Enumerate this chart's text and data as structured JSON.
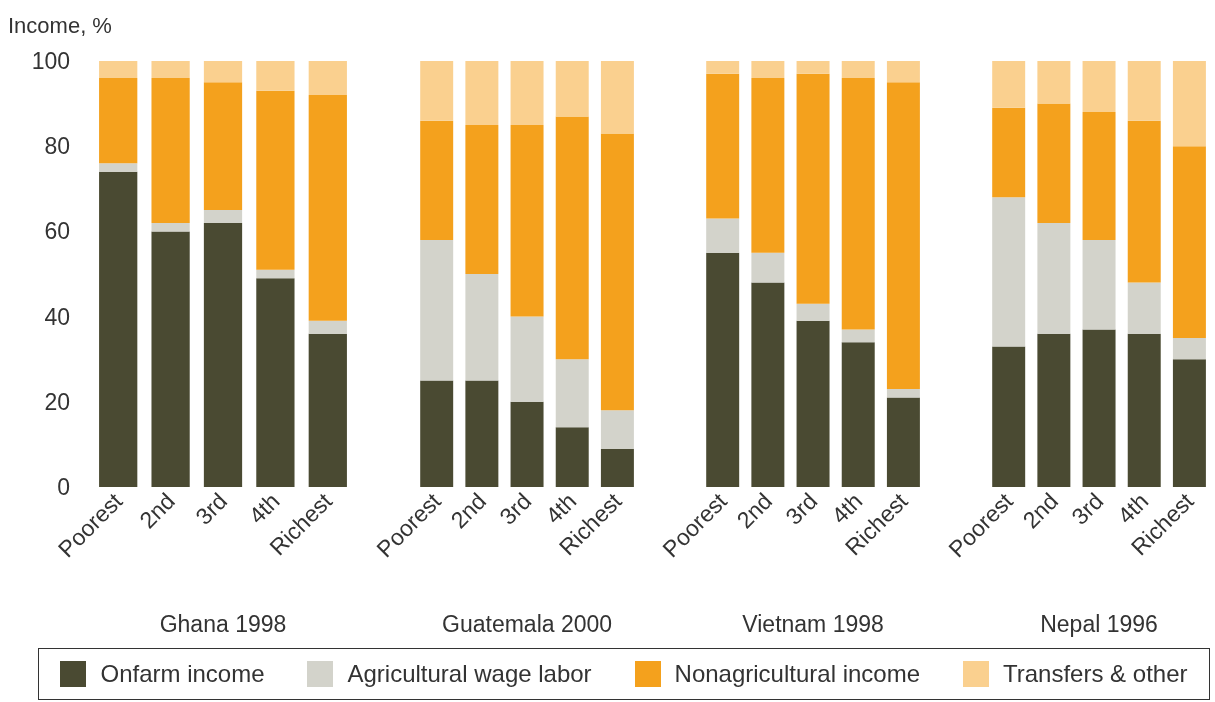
{
  "chart_data": [
    {
      "type": "bar",
      "stacked": true,
      "ylabel": "Income, %",
      "xlabel": "Ghana 1998",
      "categories": [
        "Poorest",
        "2nd",
        "3rd",
        "4th",
        "Richest"
      ],
      "ylim": [
        0,
        100
      ],
      "yticks": [
        0,
        20,
        40,
        60,
        80,
        100
      ],
      "legend": "bottom",
      "series": [
        {
          "name": "Onfarm income",
          "color": "#4a4a32",
          "values": [
            74,
            60,
            62,
            49,
            36
          ]
        },
        {
          "name": "Agricultural wage labor",
          "color": "#d3d3cb",
          "values": [
            2,
            2,
            3,
            2,
            3
          ]
        },
        {
          "name": "Nonagricultural income",
          "color": "#f4a11d",
          "values": [
            20,
            34,
            30,
            42,
            53
          ]
        },
        {
          "name": "Transfers & other",
          "color": "#fad08f",
          "values": [
            4,
            4,
            5,
            7,
            8
          ]
        }
      ]
    },
    {
      "type": "bar",
      "stacked": true,
      "xlabel": "Guatemala 2000",
      "categories": [
        "Poorest",
        "2nd",
        "3rd",
        "4th",
        "Richest"
      ],
      "ylim": [
        0,
        100
      ],
      "yticks": [
        0,
        20,
        40,
        60,
        80,
        100
      ],
      "tick_labels": "x",
      "series": [
        {
          "color": "#4a4a32",
          "values": [
            25,
            25,
            20,
            14,
            9
          ]
        },
        {
          "color": "#d3d3cb",
          "values": [
            33,
            25,
            20,
            16,
            9
          ]
        },
        {
          "color": "#f4a11d",
          "values": [
            28,
            35,
            45,
            57,
            65
          ]
        },
        {
          "color": "#fad08f",
          "values": [
            14,
            15,
            15,
            13,
            17
          ]
        }
      ]
    },
    {
      "type": "bar",
      "stacked": true,
      "xlabel": "Vietnam 1998",
      "categories": [
        "Poorest",
        "2nd",
        "3rd",
        "4th",
        "Richest"
      ],
      "ylim": [
        0,
        100
      ],
      "yticks": [
        0,
        20,
        40,
        60,
        80,
        100
      ],
      "tick_labels": "x",
      "series": [
        {
          "color": "#4a4a32",
          "values": [
            55,
            48,
            39,
            34,
            21
          ]
        },
        {
          "color": "#d3d3cb",
          "values": [
            8,
            7,
            4,
            3,
            2
          ]
        },
        {
          "color": "#f4a11d",
          "values": [
            34,
            41,
            54,
            59,
            72
          ]
        },
        {
          "color": "#fad08f",
          "values": [
            3,
            4,
            3,
            4,
            5
          ]
        }
      ]
    },
    {
      "type": "bar",
      "stacked": true,
      "xlabel": "Nepal 1996",
      "categories": [
        "Poorest",
        "2nd",
        "3rd",
        "4th",
        "Richest"
      ],
      "ylim": [
        0,
        100
      ],
      "yticks": [
        0,
        20,
        40,
        60,
        80,
        100
      ],
      "tick_labels": "x",
      "series": [
        {
          "color": "#4a4a32",
          "values": [
            33,
            36,
            37,
            36,
            30
          ]
        },
        {
          "color": "#d3d3cb",
          "values": [
            35,
            26,
            21,
            12,
            5
          ]
        },
        {
          "color": "#f4a11d",
          "values": [
            21,
            28,
            30,
            38,
            45
          ]
        },
        {
          "color": "#fad08f",
          "values": [
            11,
            10,
            12,
            14,
            20
          ]
        }
      ]
    }
  ]
}
